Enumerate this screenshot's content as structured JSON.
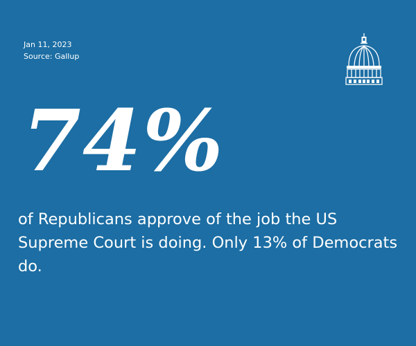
{
  "meta": {
    "date": "Jan 11, 2023",
    "source": "Source: Gallup"
  },
  "logo": {
    "icon": "capitol-dome-icon",
    "color": "#ffffff"
  },
  "stat": {
    "value": "74%"
  },
  "statement": {
    "text": "of Republicans approve of the job the US Supreme Court is doing. Only 13% of Democrats do."
  },
  "colors": {
    "background": "#1c6ea4",
    "foreground": "#ffffff"
  }
}
